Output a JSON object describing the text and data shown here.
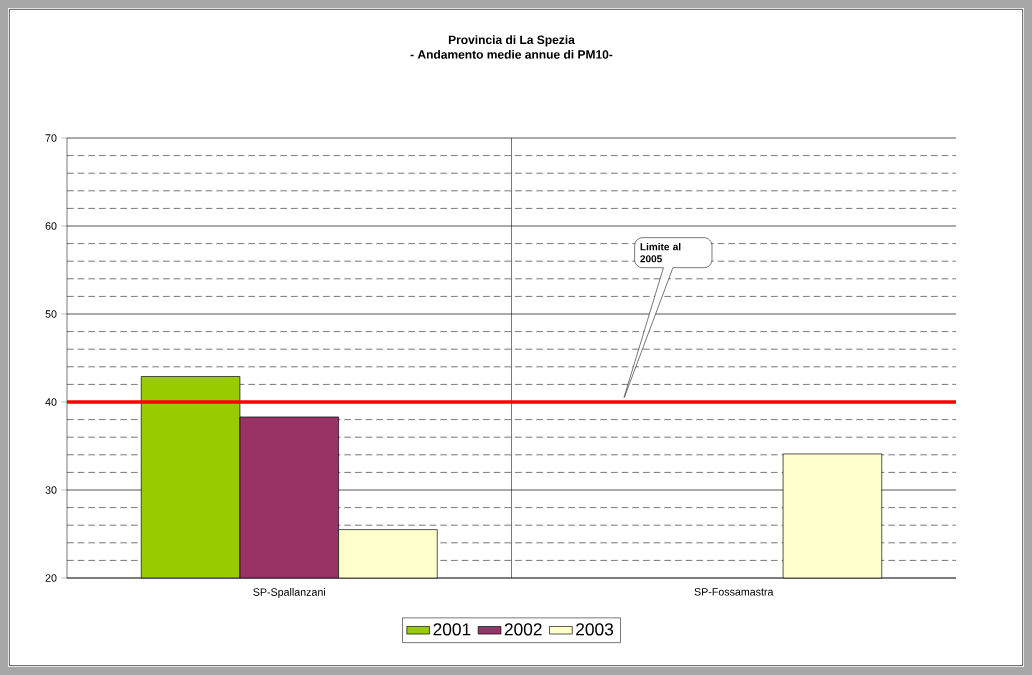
{
  "chart_data": {
    "type": "bar",
    "title": "Provincia di La Spezia",
    "subtitle": "- Andamento medie annue di PM10-",
    "categories": [
      "SP-Spallanzani",
      "SP-Fossamastra"
    ],
    "series": [
      {
        "name": "2001",
        "color": "#99cc00",
        "values": [
          42.9,
          null
        ]
      },
      {
        "name": "2002",
        "color": "#993366",
        "values": [
          38.3,
          null
        ]
      },
      {
        "name": "2003",
        "color": "#ffffcc",
        "values": [
          25.5,
          34.1
        ]
      }
    ],
    "ylim": [
      20,
      70
    ],
    "yticks": [
      20,
      30,
      40,
      50,
      60,
      70
    ],
    "grid": true,
    "legend": "bottom",
    "ref_lines": [
      {
        "axis": "y",
        "value": 40,
        "color": "#ff0000"
      }
    ],
    "annotations": [
      "Limite al 2005"
    ]
  }
}
